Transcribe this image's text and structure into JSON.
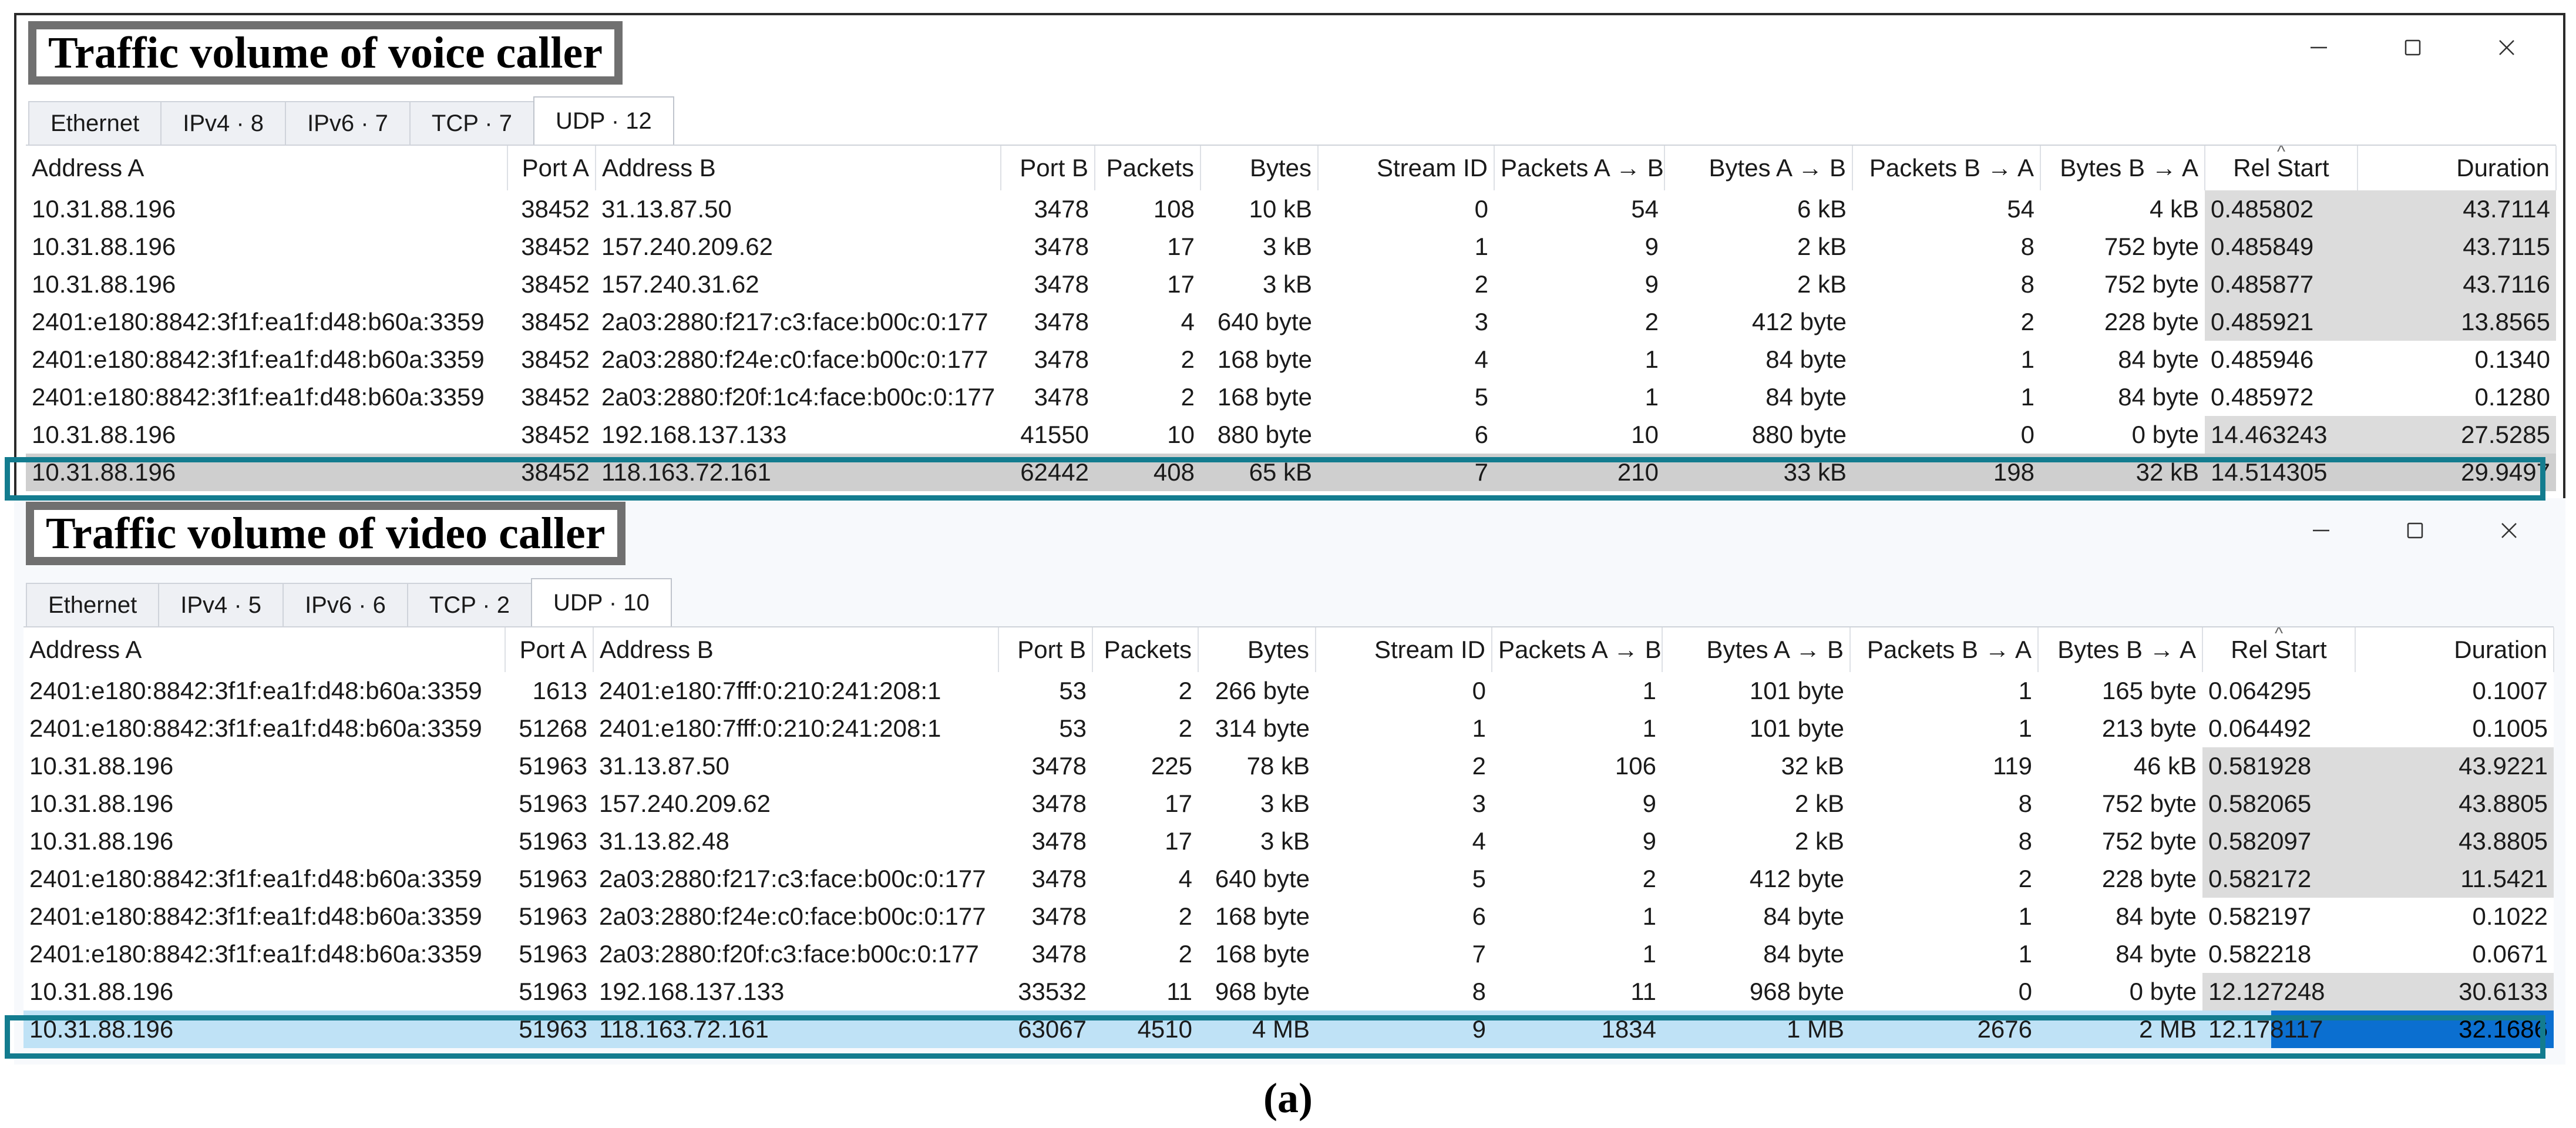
{
  "voice": {
    "caption": "Traffic volume of voice caller",
    "tabs": [
      "Ethernet",
      "IPv4 · 8",
      "IPv6 · 7",
      "TCP · 7",
      "UDP · 12"
    ],
    "active_tab": 4,
    "columns": [
      "Address A",
      "Port A",
      "Address B",
      "Port B",
      "Packets",
      "Bytes",
      "Stream ID",
      "Packets A → B",
      "Bytes A → B",
      "Packets B → A",
      "Bytes B → A",
      "Rel Start",
      "Duration"
    ],
    "rows": [
      [
        "10.31.88.196",
        "38452",
        "31.13.87.50",
        "3478",
        "108",
        "10 kB",
        "0",
        "54",
        "6 kB",
        "54",
        "4 kB",
        "0.485802",
        "43.7114"
      ],
      [
        "10.31.88.196",
        "38452",
        "157.240.209.62",
        "3478",
        "17",
        "3 kB",
        "1",
        "9",
        "2 kB",
        "8",
        "752 byte",
        "0.485849",
        "43.7115"
      ],
      [
        "10.31.88.196",
        "38452",
        "157.240.31.62",
        "3478",
        "17",
        "3 kB",
        "2",
        "9",
        "2 kB",
        "8",
        "752 byte",
        "0.485877",
        "43.7116"
      ],
      [
        "2401:e180:8842:3f1f:ea1f:d48:b60a:3359",
        "38452",
        "2a03:2880:f217:c3:face:b00c:0:177",
        "3478",
        "4",
        "640 byte",
        "3",
        "2",
        "412 byte",
        "2",
        "228 byte",
        "0.485921",
        "13.8565"
      ],
      [
        "2401:e180:8842:3f1f:ea1f:d48:b60a:3359",
        "38452",
        "2a03:2880:f24e:c0:face:b00c:0:177",
        "3478",
        "2",
        "168 byte",
        "4",
        "1",
        "84 byte",
        "1",
        "84 byte",
        "0.485946",
        "0.1340"
      ],
      [
        "2401:e180:8842:3f1f:ea1f:d48:b60a:3359",
        "38452",
        "2a03:2880:f20f:1c4:face:b00c:0:177",
        "3478",
        "2",
        "168 byte",
        "5",
        "1",
        "84 byte",
        "1",
        "84 byte",
        "0.485972",
        "0.1280"
      ],
      [
        "10.31.88.196",
        "38452",
        "192.168.137.133",
        "41550",
        "10",
        "880 byte",
        "6",
        "10",
        "880 byte",
        "0",
        "0 byte",
        "14.463243",
        "27.5285"
      ],
      [
        "10.31.88.196",
        "38452",
        "118.163.72.161",
        "62442",
        "408",
        "65 kB",
        "7",
        "210",
        "33 kB",
        "198",
        "32 kB",
        "14.514305",
        "29.9497"
      ]
    ]
  },
  "video": {
    "caption": "Traffic volume of video caller",
    "tabs": [
      "Ethernet",
      "IPv4 · 5",
      "IPv6 · 6",
      "TCP · 2",
      "UDP · 10"
    ],
    "active_tab": 4,
    "columns": [
      "Address A",
      "Port A",
      "Address B",
      "Port B",
      "Packets",
      "Bytes",
      "Stream ID",
      "Packets A → B",
      "Bytes A → B",
      "Packets B → A",
      "Bytes B → A",
      "Rel Start",
      "Duration"
    ],
    "rows": [
      [
        "2401:e180:8842:3f1f:ea1f:d48:b60a:3359",
        "1613",
        "2401:e180:7fff:0:210:241:208:1",
        "53",
        "2",
        "266 byte",
        "0",
        "1",
        "101 byte",
        "1",
        "165 byte",
        "0.064295",
        "0.1007"
      ],
      [
        "2401:e180:8842:3f1f:ea1f:d48:b60a:3359",
        "51268",
        "2401:e180:7fff:0:210:241:208:1",
        "53",
        "2",
        "314 byte",
        "1",
        "1",
        "101 byte",
        "1",
        "213 byte",
        "0.064492",
        "0.1005"
      ],
      [
        "10.31.88.196",
        "51963",
        "31.13.87.50",
        "3478",
        "225",
        "78 kB",
        "2",
        "106",
        "32 kB",
        "119",
        "46 kB",
        "0.581928",
        "43.9221"
      ],
      [
        "10.31.88.196",
        "51963",
        "157.240.209.62",
        "3478",
        "17",
        "3 kB",
        "3",
        "9",
        "2 kB",
        "8",
        "752 byte",
        "0.582065",
        "43.8805"
      ],
      [
        "10.31.88.196",
        "51963",
        "31.13.82.48",
        "3478",
        "17",
        "3 kB",
        "4",
        "9",
        "2 kB",
        "8",
        "752 byte",
        "0.582097",
        "43.8805"
      ],
      [
        "2401:e180:8842:3f1f:ea1f:d48:b60a:3359",
        "51963",
        "2a03:2880:f217:c3:face:b00c:0:177",
        "3478",
        "4",
        "640 byte",
        "5",
        "2",
        "412 byte",
        "2",
        "228 byte",
        "0.582172",
        "11.5421"
      ],
      [
        "2401:e180:8842:3f1f:ea1f:d48:b60a:3359",
        "51963",
        "2a03:2880:f24e:c0:face:b00c:0:177",
        "3478",
        "2",
        "168 byte",
        "6",
        "1",
        "84 byte",
        "1",
        "84 byte",
        "0.582197",
        "0.1022"
      ],
      [
        "2401:e180:8842:3f1f:ea1f:d48:b60a:3359",
        "51963",
        "2a03:2880:f20f:c3:face:b00c:0:177",
        "3478",
        "2",
        "168 byte",
        "7",
        "1",
        "84 byte",
        "1",
        "84 byte",
        "0.582218",
        "0.0671"
      ],
      [
        "10.31.88.196",
        "51963",
        "192.168.137.133",
        "33532",
        "11",
        "968 byte",
        "8",
        "11",
        "968 byte",
        "0",
        "0 byte",
        "12.127248",
        "30.6133"
      ],
      [
        "10.31.88.196",
        "51963",
        "118.163.72.161",
        "63067",
        "4510",
        "4 MB",
        "9",
        "1834",
        "1 MB",
        "2676",
        "2 MB",
        "12.178117",
        "32.1686"
      ]
    ]
  },
  "figure_label": "(a)",
  "colors": {
    "highlight_border": "#137c8f",
    "selected_row_voice": "#cfcfcf",
    "selected_row_video": "#bfe2f6",
    "duration_highlight": "#0b6fd0",
    "shaded_cell": "#dcdcdc"
  },
  "icons": [
    "minimize-icon",
    "maximize-icon",
    "close-icon",
    "sort-indicator-icon"
  ]
}
